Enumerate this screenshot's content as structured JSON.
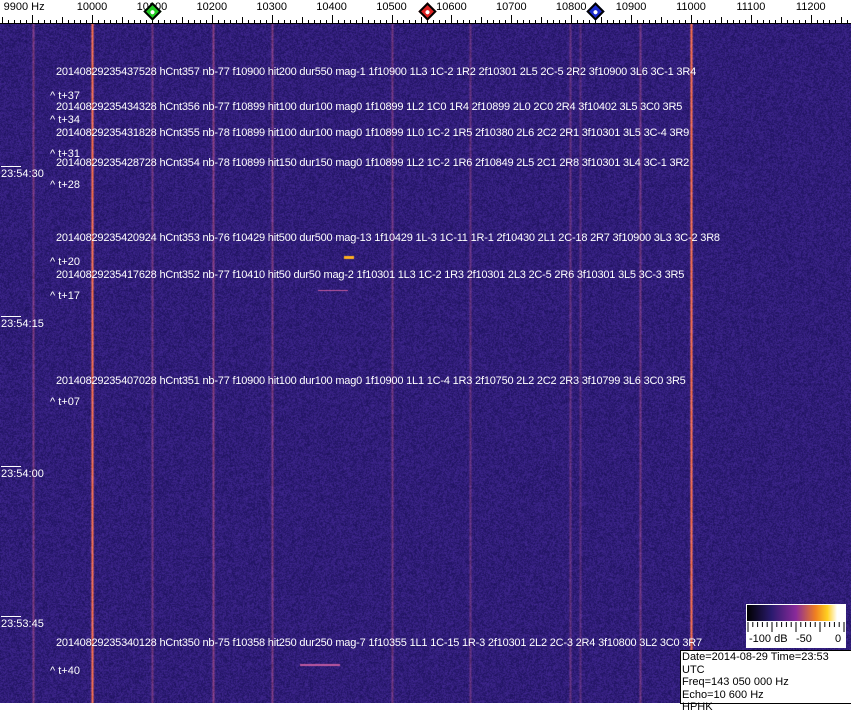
{
  "axis": {
    "unit_label": "9900 Hz",
    "ticks": [
      {
        "freq": 9900,
        "label": "9900 Hz"
      },
      {
        "freq": 10000,
        "label": "10000"
      },
      {
        "freq": 10100,
        "label": "10100"
      },
      {
        "freq": 10200,
        "label": "10200"
      },
      {
        "freq": 10300,
        "label": "10300"
      },
      {
        "freq": 10400,
        "label": "10400"
      },
      {
        "freq": 10500,
        "label": "10500"
      },
      {
        "freq": 10600,
        "label": "10600"
      },
      {
        "freq": 10700,
        "label": "10700"
      },
      {
        "freq": 10800,
        "label": "10800"
      },
      {
        "freq": 10900,
        "label": "10900"
      },
      {
        "freq": 11000,
        "label": "11000"
      },
      {
        "freq": 11100,
        "label": "11100"
      },
      {
        "freq": 11200,
        "label": "11200"
      }
    ]
  },
  "markers": [
    {
      "name": "green-marker",
      "freq": 10100,
      "color": "#22cc22"
    },
    {
      "name": "red-marker",
      "freq": 10560,
      "color": "#dd2222"
    },
    {
      "name": "blue-marker",
      "freq": 10840,
      "color": "#1a2ad0"
    }
  ],
  "time_labels": [
    "23:54:30",
    "23:54:15",
    "23:54:00",
    "23:53:45"
  ],
  "events": [
    {
      "text": "20140829235437528 hCnt357 nb-77 f10900 hit200 dur550 mag-1 1f10900 1L3 1C-2 1R2 2f10301 2L5 2C-5 2R2 3f10900 3L6 3C-1 3R4",
      "delta": "^ t+37"
    },
    {
      "text": "20140829235434328 hCnt356 nb-77 f10899 hit100 dur100 mag0 1f10899 1L2 1C0 1R4 2f10899 2L0 2C0 2R4 3f10402 3L5 3C0 3R5",
      "delta": "^ t+34"
    },
    {
      "text": "20140829235431828 hCnt355 nb-78 f10899 hit100 dur100 mag0 1f10899 1L0 1C-2 1R5 2f10380 2L6 2C2 2R1 3f10301 3L5 3C-4 3R9",
      "delta": "^ t+31"
    },
    {
      "text": "20140829235428728 hCnt354 nb-78 f10899 hit150 dur150 mag0 1f10899 1L2 1C-2 1R6 2f10849 2L5 2C1 2R8 3f10301 3L4 3C-1 3R2",
      "delta": "^ t+28"
    },
    {
      "text": "20140829235420924 hCnt353 nb-76 f10429 hit500 dur500 mag-13 1f10429 1L-3 1C-11 1R-1 2f10430 2L1 2C-18 2R7 3f10900 3L3 3C-2 3R8",
      "delta": "^ t+20"
    },
    {
      "text": "20140829235417628 hCnt352 nb-77 f10410 hit50 dur50 mag-2 1f10301 1L3 1C-2 1R3 2f10301 2L3 2C-5 2R6 3f10301 3L5 3C-3 3R5",
      "delta": "^ t+17"
    },
    {
      "text": "20140829235407028 hCnt351 nb-77 f10900 hit100 dur100 mag0 1f10900 1L1 1C-4 1R3 2f10750 2L2 2C2 2R3 3f10799 3L6 3C0 3R5",
      "delta": "^ t+07"
    },
    {
      "text": "20140829235340128 hCnt350 nb-75 f10358 hit250 dur250 mag-7 1f10355 1L1 1C-15 1R-3 2f10301 2L2 2C-3 2R4 3f10800 3L2 3C0 3R7",
      "delta": "^ t+40"
    }
  ],
  "colorbar": {
    "labels": [
      "-100 dB",
      "-50",
      "0"
    ],
    "colors": [
      "#000000",
      "#2a1a6e",
      "#8a2a9a",
      "#f08020",
      "#ffd020",
      "#ffffff"
    ]
  },
  "info": {
    "date_time": "Date=2014-08-29 Time=23:53 UTC",
    "freq": "Freq=143 050 000 Hz",
    "echo": "Echo=10 600 Hz",
    "station": "HPHK"
  },
  "colors": {
    "background": "#2a1a6e",
    "carrier": "#f08030"
  }
}
